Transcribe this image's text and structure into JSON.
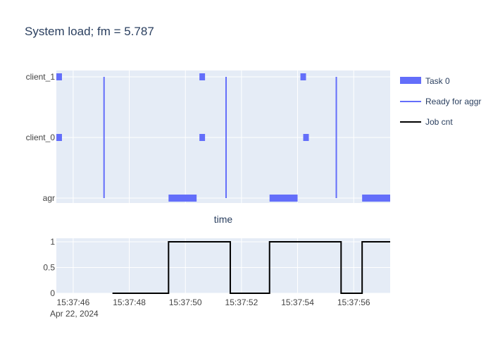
{
  "chart_data": {
    "title": "System load; fm = 5.787",
    "colors": {
      "plot_bg": "#e5ecf6",
      "grid": "#ffffff",
      "task": "#636efa",
      "ready": "#636efa",
      "job": "#000000",
      "text": "#2a3f5f",
      "tick_text": "#444444"
    },
    "legend": {
      "placement": "right",
      "entries": [
        {
          "name": "Task 0",
          "symbol": "bar"
        },
        {
          "name": "Ready for aggr",
          "symbol": "line-blue"
        },
        {
          "name": "Job cnt",
          "symbol": "line-black"
        }
      ]
    },
    "charts": [
      {
        "type": "timeline",
        "xlabel": "time",
        "xlim": [
          "15:37:45.4",
          "15:37:57.3"
        ],
        "categories": [
          "agr",
          "client_0",
          "client_1"
        ],
        "task_0": [
          {
            "row": "client_1",
            "start": "15:37:45.4",
            "end": "15:37:45.6"
          },
          {
            "row": "client_0",
            "start": "15:37:45.4",
            "end": "15:37:45.6"
          },
          {
            "row": "client_1",
            "start": "15:37:50.5",
            "end": "15:37:50.7"
          },
          {
            "row": "client_0",
            "start": "15:37:50.5",
            "end": "15:37:50.7"
          },
          {
            "row": "client_1",
            "start": "15:37:54.1",
            "end": "15:37:54.3"
          },
          {
            "row": "client_0",
            "start": "15:37:54.2",
            "end": "15:37:54.4"
          },
          {
            "row": "agr",
            "start": "15:37:49.4",
            "end": "15:37:50.4"
          },
          {
            "row": "agr",
            "start": "15:37:53.0",
            "end": "15:37:54.0"
          },
          {
            "row": "agr",
            "start": "15:37:56.3",
            "end": "15:37:57.3"
          }
        ],
        "ready_for_aggr": [
          "15:37:47.1",
          "15:37:51.45",
          "15:37:55.38"
        ]
      },
      {
        "type": "line",
        "shape": "step",
        "series_name": "Job cnt",
        "xlim": [
          "15:37:45.4",
          "15:37:57.3"
        ],
        "ylim": [
          0,
          1
        ],
        "yticks": [
          "0",
          "0.5",
          "1"
        ],
        "xticks": [
          "15:37:46",
          "15:37:48",
          "15:37:50",
          "15:37:52",
          "15:37:54",
          "15:37:56"
        ],
        "date_label": "Apr 22, 2024",
        "points": [
          {
            "x": "15:37:47.4",
            "y": 0
          },
          {
            "x": "15:37:49.4",
            "y": 1
          },
          {
            "x": "15:37:51.6",
            "y": 0
          },
          {
            "x": "15:37:53.0",
            "y": 1
          },
          {
            "x": "15:37:55.55",
            "y": 0
          },
          {
            "x": "15:37:56.3",
            "y": 1
          },
          {
            "x": "15:37:57.3",
            "y": 1
          }
        ]
      }
    ]
  }
}
